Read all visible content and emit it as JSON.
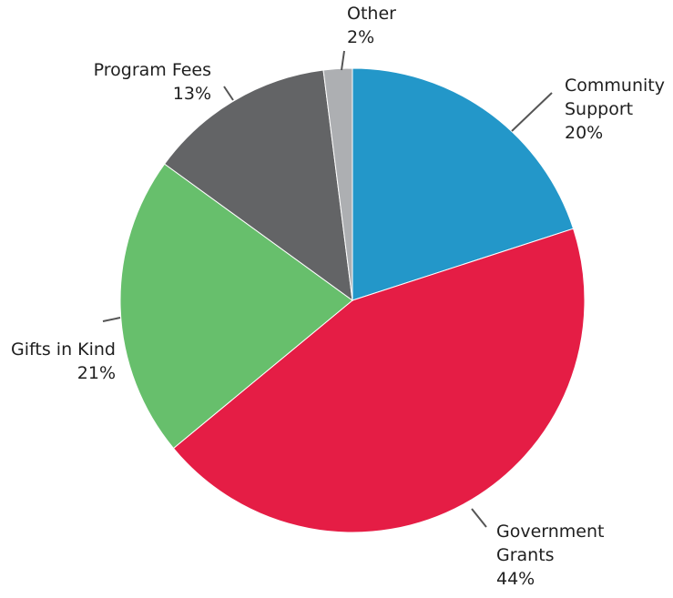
{
  "chart_data": {
    "type": "pie",
    "title": "",
    "slices": [
      {
        "label_lines": [
          "Community",
          "Support"
        ],
        "value_label": "20%",
        "value": 20,
        "color": "#2397c9"
      },
      {
        "label_lines": [
          "Government",
          "Grants"
        ],
        "value_label": "44%",
        "value": 44,
        "color": "#e51d45"
      },
      {
        "label_lines": [
          "Gifts in Kind"
        ],
        "value_label": "21%",
        "value": 21,
        "color": "#67bf6c"
      },
      {
        "label_lines": [
          "Program Fees"
        ],
        "value_label": "13%",
        "value": 13,
        "color": "#636466"
      },
      {
        "label_lines": [
          "Other"
        ],
        "value_label": "2%",
        "value": 2,
        "color": "#adafb2"
      }
    ],
    "start": "12 o'clock",
    "direction": "clockwise",
    "legend": "none"
  }
}
